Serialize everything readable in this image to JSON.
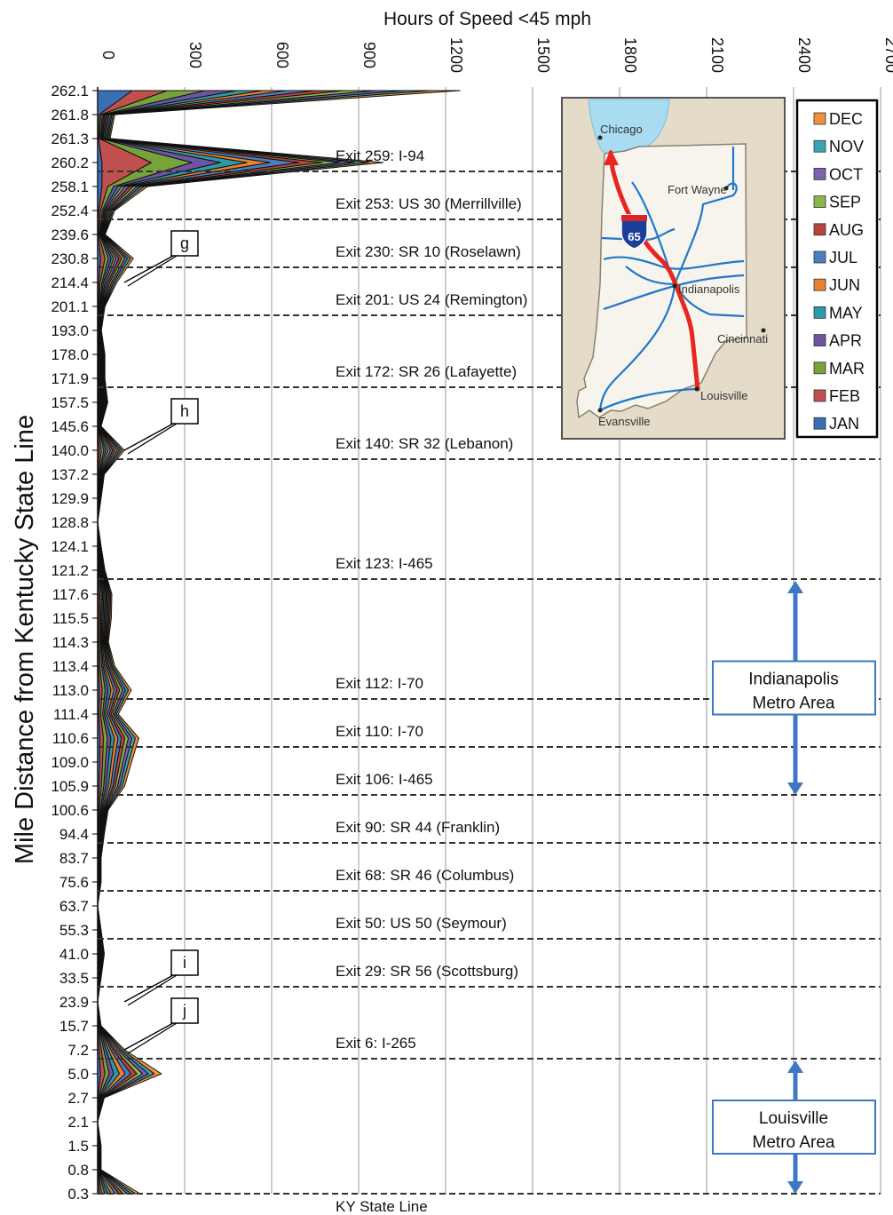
{
  "chart_data": {
    "type": "area",
    "orientation": "horizontal-stacked",
    "title": "",
    "xlabel": "Hours of Speed <45 mph",
    "ylabel": "Mile Distance from Kentucky State Line",
    "xlim": [
      0,
      2700
    ],
    "x_ticks": [
      "0",
      "300",
      "600",
      "900",
      "1200",
      "1500",
      "1800",
      "2100",
      "2400",
      "2700"
    ],
    "grid": "vertical",
    "legend_position": "top-right",
    "mile_markers": [
      "262.1",
      "261.8",
      "261.3",
      "260.2",
      "258.1",
      "252.4",
      "239.6",
      "230.8",
      "214.4",
      "201.1",
      "193.0",
      "178.0",
      "171.9",
      "157.5",
      "145.6",
      "140.0",
      "137.2",
      "129.9",
      "128.8",
      "124.1",
      "121.2",
      "117.6",
      "115.5",
      "114.3",
      "113.4",
      "113.0",
      "111.4",
      "110.6",
      "109.0",
      "105.9",
      "100.6",
      "94.4",
      "83.7",
      "75.6",
      "63.7",
      "55.3",
      "41.0",
      "33.5",
      "23.9",
      "15.7",
      "7.2",
      "5.0",
      "2.7",
      "2.1",
      "1.5",
      "0.8",
      "0.3"
    ],
    "series": [
      {
        "name": "JAN",
        "color": "#3a6fb5",
        "values": [
          120,
          5,
          3,
          15,
          15,
          4,
          2,
          10,
          4,
          2,
          1,
          2,
          2,
          3,
          1,
          5,
          1,
          1,
          0,
          1,
          2,
          3,
          2,
          2,
          3,
          6,
          4,
          8,
          7,
          5,
          2,
          1,
          1,
          1,
          0,
          1,
          1,
          1,
          0,
          1,
          5,
          10,
          1,
          0,
          1,
          1,
          6
        ]
      },
      {
        "name": "FEB",
        "color": "#c0504d",
        "values": [
          120,
          6,
          3,
          170,
          20,
          6,
          3,
          15,
          5,
          3,
          2,
          3,
          3,
          3,
          1,
          8,
          2,
          1,
          0,
          1,
          3,
          5,
          5,
          4,
          5,
          10,
          6,
          12,
          10,
          8,
          3,
          2,
          1,
          1,
          0,
          1,
          2,
          1,
          0,
          1,
          8,
          15,
          2,
          0,
          1,
          1,
          8
        ]
      },
      {
        "name": "MAR",
        "color": "#77a33b",
        "values": [
          130,
          5,
          4,
          140,
          20,
          6,
          3,
          12,
          6,
          2,
          1,
          2,
          2,
          3,
          1,
          8,
          2,
          1,
          0,
          1,
          2,
          5,
          4,
          4,
          6,
          10,
          7,
          14,
          10,
          8,
          4,
          2,
          1,
          1,
          0,
          1,
          2,
          1,
          0,
          1,
          8,
          15,
          2,
          0,
          1,
          1,
          10
        ]
      },
      {
        "name": "APR",
        "color": "#6e55a0",
        "values": [
          110,
          5,
          3,
          100,
          15,
          5,
          2,
          10,
          5,
          2,
          1,
          2,
          2,
          3,
          1,
          7,
          2,
          1,
          0,
          1,
          2,
          4,
          4,
          3,
          5,
          10,
          6,
          12,
          10,
          8,
          3,
          2,
          1,
          1,
          0,
          1,
          2,
          1,
          0,
          1,
          8,
          15,
          2,
          0,
          1,
          1,
          10
        ]
      },
      {
        "name": "MAY",
        "color": "#2e99a8",
        "values": [
          90,
          4,
          3,
          90,
          12,
          4,
          2,
          8,
          5,
          2,
          1,
          2,
          2,
          3,
          1,
          8,
          2,
          1,
          0,
          1,
          2,
          4,
          4,
          3,
          5,
          10,
          6,
          12,
          10,
          8,
          3,
          2,
          1,
          1,
          0,
          1,
          2,
          1,
          0,
          1,
          8,
          20,
          2,
          0,
          1,
          1,
          12
        ]
      },
      {
        "name": "JUN",
        "color": "#e8822f",
        "values": [
          80,
          4,
          3,
          80,
          12,
          4,
          2,
          8,
          5,
          2,
          1,
          2,
          2,
          2,
          1,
          8,
          2,
          1,
          0,
          1,
          2,
          4,
          4,
          3,
          5,
          10,
          6,
          12,
          10,
          8,
          3,
          2,
          1,
          1,
          0,
          1,
          2,
          1,
          0,
          1,
          8,
          20,
          2,
          0,
          1,
          1,
          14
        ]
      },
      {
        "name": "JUL",
        "color": "#4a7fc0",
        "values": [
          100,
          5,
          4,
          100,
          14,
          5,
          2,
          10,
          6,
          2,
          1,
          2,
          2,
          3,
          1,
          8,
          2,
          1,
          0,
          1,
          2,
          4,
          4,
          3,
          5,
          10,
          6,
          12,
          10,
          8,
          3,
          2,
          1,
          1,
          0,
          1,
          2,
          1,
          0,
          1,
          8,
          20,
          2,
          0,
          1,
          1,
          14
        ]
      },
      {
        "name": "AUG",
        "color": "#b9433f",
        "values": [
          100,
          5,
          4,
          80,
          14,
          5,
          2,
          10,
          6,
          2,
          1,
          2,
          2,
          3,
          1,
          8,
          2,
          1,
          0,
          1,
          2,
          4,
          4,
          3,
          5,
          10,
          6,
          12,
          10,
          8,
          3,
          2,
          1,
          1,
          0,
          1,
          2,
          1,
          0,
          1,
          8,
          20,
          2,
          0,
          1,
          1,
          14
        ]
      },
      {
        "name": "SEP",
        "color": "#8ab64b",
        "values": [
          110,
          5,
          4,
          60,
          14,
          5,
          2,
          10,
          6,
          2,
          1,
          2,
          2,
          3,
          1,
          8,
          2,
          1,
          0,
          1,
          2,
          4,
          4,
          3,
          5,
          10,
          6,
          12,
          10,
          8,
          3,
          2,
          1,
          1,
          0,
          1,
          2,
          1,
          0,
          1,
          8,
          20,
          2,
          0,
          1,
          1,
          14
        ]
      },
      {
        "name": "OCT",
        "color": "#7c63b0",
        "values": [
          100,
          5,
          4,
          50,
          12,
          5,
          2,
          10,
          6,
          2,
          1,
          2,
          2,
          3,
          1,
          8,
          2,
          1,
          0,
          1,
          2,
          4,
          4,
          3,
          5,
          10,
          6,
          12,
          10,
          8,
          3,
          2,
          1,
          1,
          0,
          1,
          2,
          1,
          0,
          1,
          8,
          20,
          2,
          0,
          1,
          1,
          14
        ]
      },
      {
        "name": "NOV",
        "color": "#3aa5b8",
        "values": [
          90,
          5,
          4,
          50,
          12,
          5,
          2,
          10,
          6,
          2,
          1,
          2,
          2,
          3,
          1,
          8,
          2,
          1,
          0,
          1,
          2,
          4,
          4,
          3,
          5,
          10,
          6,
          12,
          10,
          8,
          3,
          2,
          1,
          1,
          0,
          1,
          2,
          1,
          0,
          1,
          8,
          20,
          2,
          0,
          1,
          1,
          14
        ]
      },
      {
        "name": "DEC",
        "color": "#f0913a",
        "values": [
          100,
          5,
          4,
          50,
          12,
          5,
          2,
          10,
          6,
          2,
          1,
          2,
          2,
          3,
          1,
          8,
          2,
          1,
          0,
          1,
          2,
          4,
          4,
          3,
          5,
          10,
          6,
          12,
          10,
          8,
          3,
          2,
          1,
          1,
          0,
          1,
          2,
          1,
          0,
          1,
          8,
          25,
          2,
          0,
          1,
          1,
          16
        ]
      }
    ],
    "exit_lines": [
      {
        "label": "Exit 259: I-94",
        "mile": "260.2"
      },
      {
        "label": "Exit 253: US 30 (Merrillville)",
        "mile": "252.4"
      },
      {
        "label": "Exit 230: SR 10 (Roselawn)",
        "mile": "230.8"
      },
      {
        "label": "Exit 201: US 24 (Remington)",
        "mile": "201.1"
      },
      {
        "label": "Exit 172: SR 26 (Lafayette)",
        "mile": "171.9"
      },
      {
        "label": "Exit 140: SR 32 (Lebanon)",
        "mile": "140.0"
      },
      {
        "label": "Exit 123: I-465",
        "mile": "121.2"
      },
      {
        "label": "Exit 112: I-70",
        "mile": "113.0"
      },
      {
        "label": "Exit 110: I-70",
        "mile": "110.6"
      },
      {
        "label": "Exit 106: I-465",
        "mile": "105.9"
      },
      {
        "label": "Exit 90: SR 44 (Franklin)",
        "mile": "94.4"
      },
      {
        "label": "Exit 68: SR 46 (Columbus)",
        "mile": "75.6"
      },
      {
        "label": "Exit 50: US 50 (Seymour)",
        "mile": "55.3"
      },
      {
        "label": "Exit 29: SR 56 (Scottsburg)",
        "mile": "33.5"
      },
      {
        "label": "Exit 6: I-265",
        "mile": "7.2"
      },
      {
        "label": "KY State Line",
        "mile": "0.3"
      }
    ],
    "callouts": [
      {
        "label": "g",
        "mile": "214.4"
      },
      {
        "label": "h",
        "mile": "140.0"
      },
      {
        "label": "i",
        "mile": "23.9"
      },
      {
        "label": "j",
        "mile": "7.2"
      }
    ],
    "metro_areas": [
      {
        "line1": "Indianapolis",
        "line2": "Metro Area",
        "from_mile": "121.2",
        "to_mile": "105.9"
      },
      {
        "line1": "Louisville",
        "line2": "Metro Area",
        "from_mile": "7.2",
        "to_mile": "0.3"
      }
    ],
    "inset_map": {
      "cities": [
        "Chicago",
        "Fort Wayne",
        "Indianapolis",
        "Cincinnati",
        "Louisville",
        "Evansville"
      ],
      "shield": "65",
      "colors": {
        "route": "#e8251f",
        "roads": "#1f78c8",
        "land": "#e4dcc8",
        "water": "#a9dcf0",
        "state": "#f7f4ee"
      }
    }
  }
}
